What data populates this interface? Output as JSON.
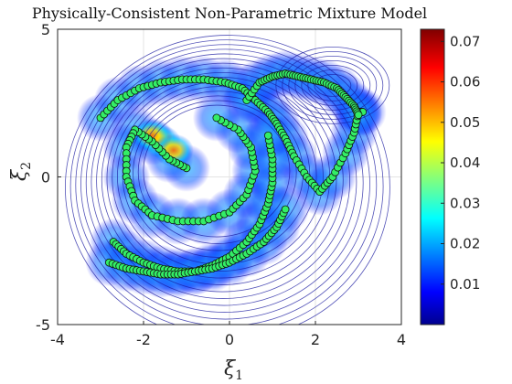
{
  "chart_data": {
    "type": "scatter",
    "title": "Physically-Consistent Non-Parametric Mixture Model",
    "xlabel": "ξ",
    "xlabel_sub": "1",
    "ylabel": "ξ",
    "ylabel_sub": "2",
    "xlim": [
      -4,
      4
    ],
    "ylim": [
      -5,
      5
    ],
    "xticks": [
      -4,
      -2,
      0,
      2,
      4
    ],
    "yticks": [
      -5,
      0,
      5
    ],
    "xtick_labels": [
      "-4",
      "-2",
      "0",
      "2",
      "4"
    ],
    "ytick_labels": [
      "-5",
      "0",
      "5"
    ],
    "grid": true,
    "colorbar": {
      "colormap": "jet",
      "range": [
        0,
        0.073
      ],
      "ticks": [
        0.01,
        0.02,
        0.03,
        0.04,
        0.05,
        0.06,
        0.07
      ],
      "tick_labels": [
        "0.01",
        "0.02",
        "0.03",
        "0.04",
        "0.05",
        "0.06",
        "0.07"
      ]
    },
    "marker_color": "#33ee66",
    "marker_edge": "#111111",
    "contour_color": "#1a1aa0",
    "series": [
      {
        "x": [
          -3.0,
          -2.6,
          -2.1,
          -1.6,
          -1.1,
          -0.6,
          -0.1,
          0.3,
          0.6,
          0.9,
          1.1,
          1.3,
          1.5,
          1.8,
          2.1,
          2.4,
          2.7,
          2.9,
          3.0,
          3.1
        ],
        "y": [
          2.0,
          2.6,
          3.0,
          3.2,
          3.3,
          3.3,
          3.2,
          3.0,
          2.6,
          2.2,
          1.8,
          1.3,
          0.7,
          0.0,
          -0.5,
          0.0,
          0.8,
          1.5,
          2.2,
          2.2
        ]
      },
      {
        "x": [
          0.4,
          0.7,
          1.0,
          1.3,
          1.6,
          1.9,
          2.2,
          2.5,
          2.7,
          2.9,
          3.0
        ],
        "y": [
          2.6,
          3.2,
          3.4,
          3.5,
          3.4,
          3.3,
          3.2,
          3.0,
          2.7,
          2.4,
          2.1
        ]
      },
      {
        "x": [
          -1.0,
          -1.4,
          -1.8,
          -2.2,
          -2.4,
          -2.4,
          -2.2,
          -1.8,
          -1.2,
          -0.6,
          0.0,
          0.4,
          0.6,
          0.5,
          0.2,
          -0.3
        ],
        "y": [
          0.3,
          0.6,
          1.2,
          1.6,
          1.0,
          0.0,
          -0.8,
          -1.3,
          -1.5,
          -1.5,
          -1.2,
          -0.6,
          0.2,
          1.0,
          1.6,
          2.0
        ]
      },
      {
        "x": [
          -2.7,
          -2.4,
          -2.0,
          -1.6,
          -1.2,
          -0.8,
          -0.4,
          0.0,
          0.4,
          0.7,
          0.9,
          1.0,
          1.0,
          0.9
        ],
        "y": [
          -2.2,
          -2.6,
          -2.9,
          -3.1,
          -3.2,
          -3.2,
          -3.0,
          -2.7,
          -2.2,
          -1.6,
          -0.9,
          -0.2,
          0.6,
          1.4
        ]
      },
      {
        "x": [
          -2.8,
          -2.4,
          -2.0,
          -1.6,
          -1.2,
          -0.8,
          -0.4,
          0.0,
          0.4,
          0.8,
          1.1,
          1.3
        ],
        "y": [
          -2.9,
          -3.1,
          -3.2,
          -3.3,
          -3.3,
          -3.2,
          -3.1,
          -2.9,
          -2.6,
          -2.2,
          -1.7,
          -1.1
        ]
      }
    ]
  }
}
